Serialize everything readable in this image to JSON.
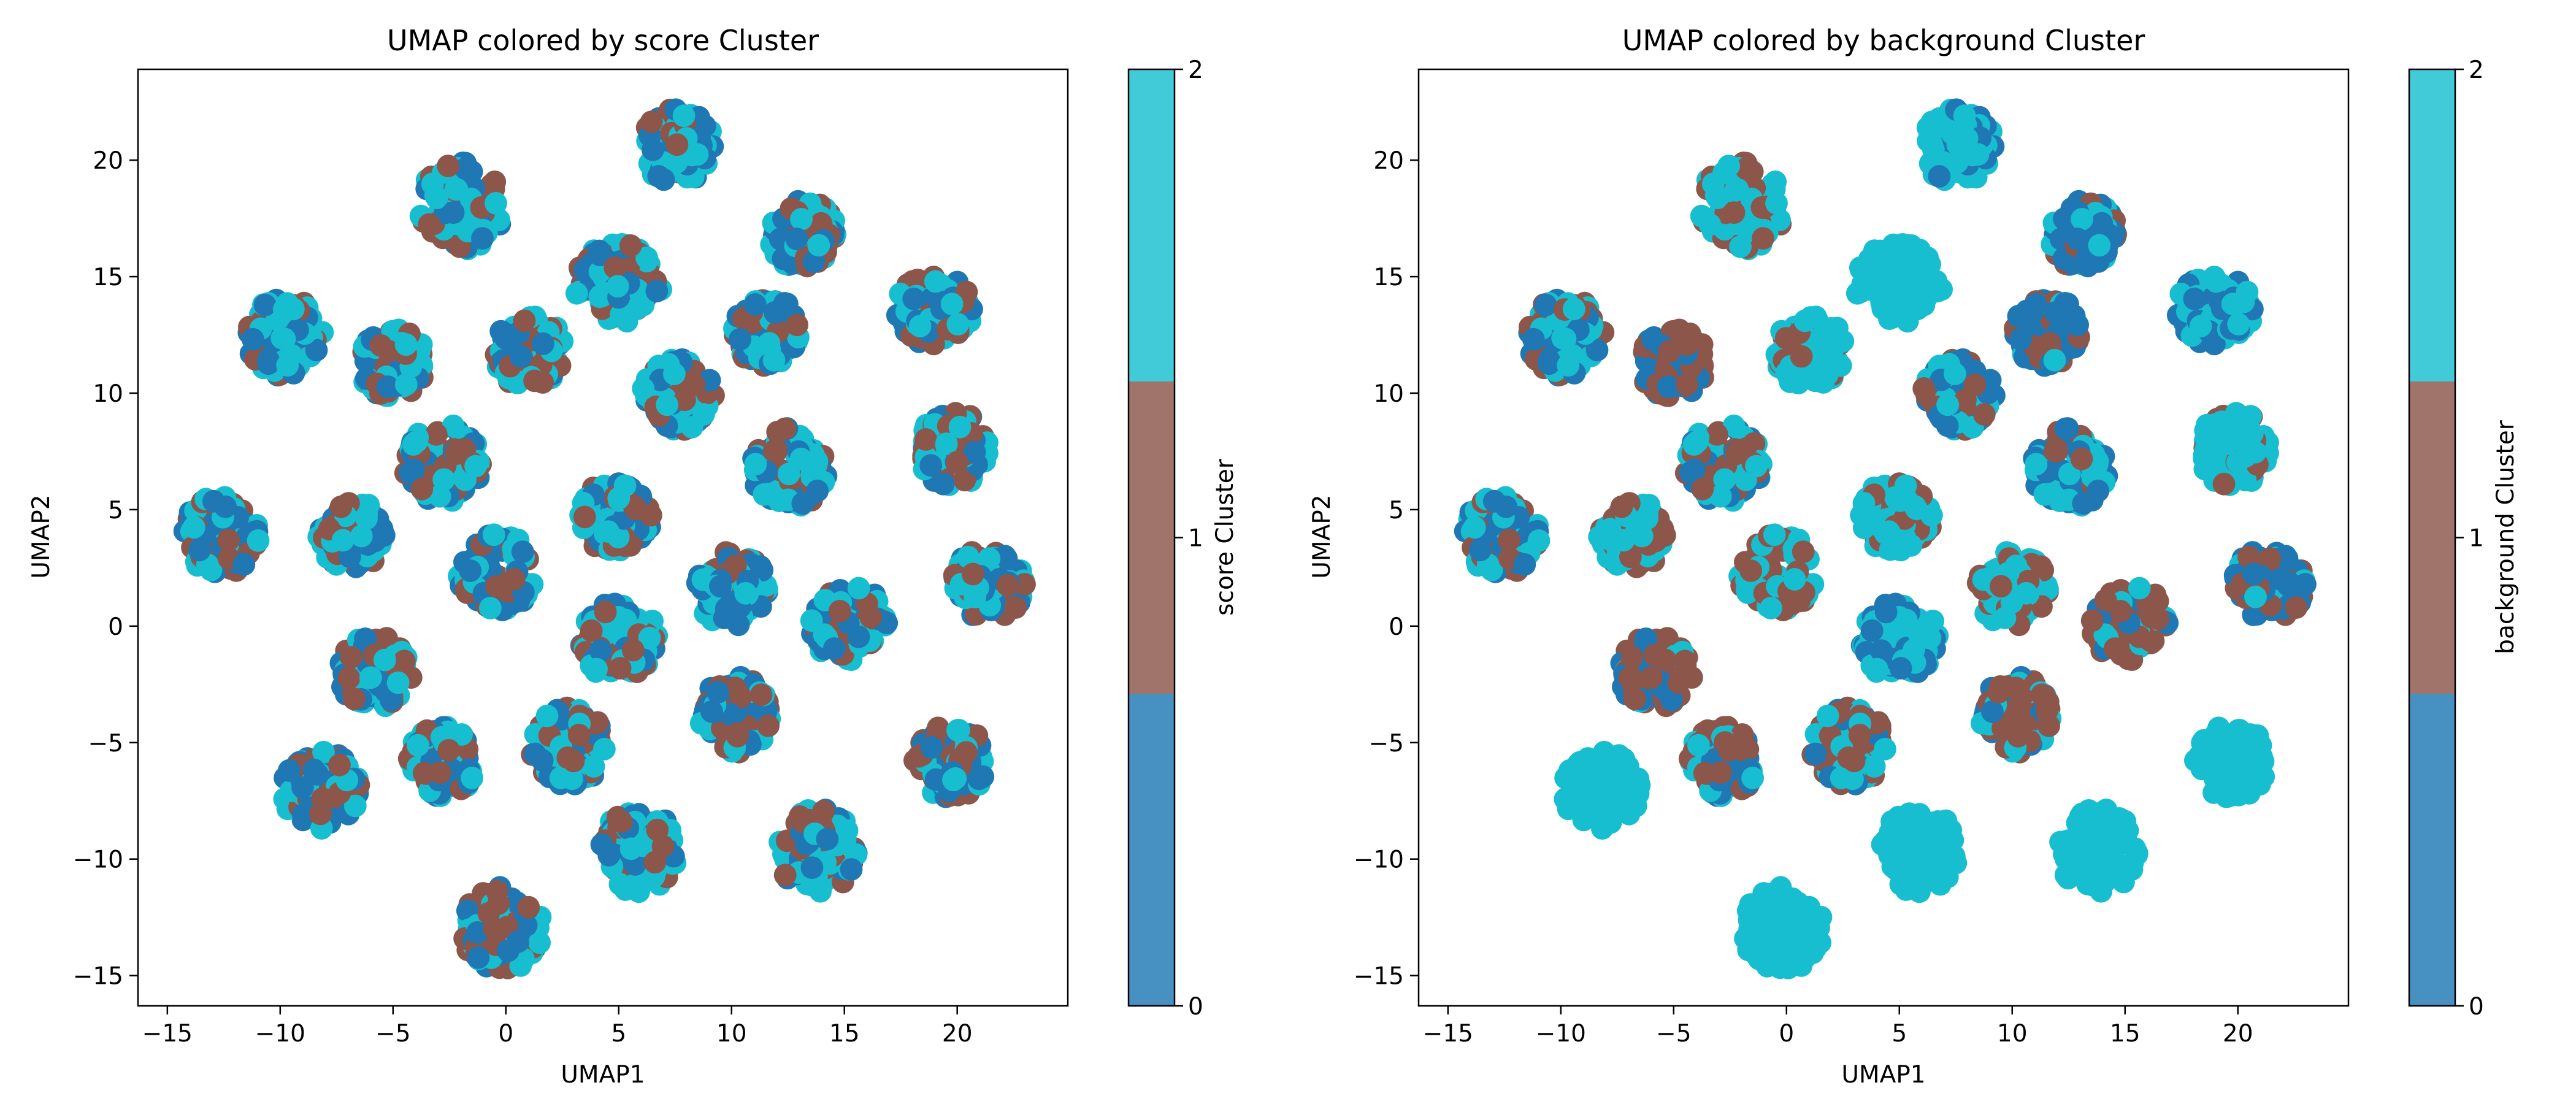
{
  "figure": {
    "background": "#ffffff"
  },
  "colors": {
    "cluster_0": "#1f77b4",
    "cluster_1": "#8c564b",
    "cluster_2": "#17becf"
  },
  "chart_data": [
    {
      "type": "scatter",
      "title": "UMAP colored by score Cluster",
      "xlabel": "UMAP1",
      "ylabel": "UMAP2",
      "xlim": [
        -16.3,
        24.9
      ],
      "ylim": [
        -16.3,
        23.9
      ],
      "xticks": [
        -15,
        -10,
        -5,
        0,
        5,
        10,
        15,
        20
      ],
      "yticks": [
        -15,
        -10,
        -5,
        0,
        5,
        10,
        15,
        20
      ],
      "grid": false,
      "colorbar": {
        "label": "score Cluster",
        "ticks": [
          0,
          1,
          2
        ],
        "colors": [
          "#1f77b4",
          "#8c564b",
          "#17becf"
        ]
      },
      "series": [
        {
          "clusters": [
            {
              "x": 7.6,
              "y": 20.6,
              "r": 1.7,
              "w": [
                0.33,
                0.3,
                0.37
              ]
            },
            {
              "x": -2.0,
              "y": 18.0,
              "r": 2.0,
              "w": [
                0.33,
                0.3,
                0.37
              ]
            },
            {
              "x": 13.2,
              "y": 16.8,
              "r": 1.6,
              "w": [
                0.33,
                0.3,
                0.37
              ]
            },
            {
              "x": 5.0,
              "y": 14.6,
              "r": 2.0,
              "w": [
                0.33,
                0.3,
                0.37
              ]
            },
            {
              "x": 19.0,
              "y": 13.5,
              "r": 1.8,
              "w": [
                0.33,
                0.3,
                0.37
              ]
            },
            {
              "x": -9.8,
              "y": 12.4,
              "r": 1.8,
              "w": [
                0.33,
                0.3,
                0.37
              ]
            },
            {
              "x": 11.6,
              "y": 12.6,
              "r": 1.6,
              "w": [
                0.33,
                0.3,
                0.37
              ]
            },
            {
              "x": -5.0,
              "y": 11.3,
              "r": 1.6,
              "w": [
                0.33,
                0.3,
                0.37
              ]
            },
            {
              "x": 1.0,
              "y": 11.8,
              "r": 1.7,
              "w": [
                0.33,
                0.3,
                0.37
              ]
            },
            {
              "x": 7.6,
              "y": 9.9,
              "r": 1.7,
              "w": [
                0.33,
                0.3,
                0.37
              ]
            },
            {
              "x": 19.8,
              "y": 7.6,
              "r": 1.7,
              "w": [
                0.33,
                0.3,
                0.37
              ]
            },
            {
              "x": -2.8,
              "y": 7.0,
              "r": 1.8,
              "w": [
                0.33,
                0.3,
                0.37
              ]
            },
            {
              "x": 12.6,
              "y": 6.8,
              "r": 1.8,
              "w": [
                0.33,
                0.3,
                0.37
              ]
            },
            {
              "x": 4.9,
              "y": 4.7,
              "r": 1.7,
              "w": [
                0.33,
                0.3,
                0.37
              ]
            },
            {
              "x": -12.6,
              "y": 3.9,
              "r": 1.8,
              "w": [
                0.33,
                0.3,
                0.37
              ]
            },
            {
              "x": -6.8,
              "y": 3.9,
              "r": 1.6,
              "w": [
                0.33,
                0.3,
                0.37
              ]
            },
            {
              "x": -0.4,
              "y": 2.3,
              "r": 1.8,
              "w": [
                0.33,
                0.3,
                0.37
              ]
            },
            {
              "x": 10.0,
              "y": 1.6,
              "r": 1.7,
              "w": [
                0.33,
                0.3,
                0.37
              ]
            },
            {
              "x": 21.4,
              "y": 1.8,
              "r": 1.7,
              "w": [
                0.33,
                0.3,
                0.37
              ]
            },
            {
              "x": 15.2,
              "y": 0.1,
              "r": 1.8,
              "w": [
                0.33,
                0.3,
                0.37
              ]
            },
            {
              "x": 5.0,
              "y": -0.6,
              "r": 1.8,
              "w": [
                0.33,
                0.3,
                0.37
              ]
            },
            {
              "x": -5.8,
              "y": -2.0,
              "r": 1.7,
              "w": [
                0.33,
                0.3,
                0.37
              ]
            },
            {
              "x": 10.2,
              "y": -3.8,
              "r": 1.7,
              "w": [
                0.33,
                0.3,
                0.37
              ]
            },
            {
              "x": 2.8,
              "y": -5.2,
              "r": 1.8,
              "w": [
                0.33,
                0.3,
                0.37
              ]
            },
            {
              "x": -2.8,
              "y": -5.8,
              "r": 1.6,
              "w": [
                0.33,
                0.3,
                0.37
              ]
            },
            {
              "x": 19.7,
              "y": -5.8,
              "r": 1.7,
              "w": [
                0.33,
                0.3,
                0.37
              ]
            },
            {
              "x": -8.2,
              "y": -7.0,
              "r": 1.8,
              "w": [
                0.33,
                0.3,
                0.37
              ]
            },
            {
              "x": 5.8,
              "y": -9.6,
              "r": 1.9,
              "w": [
                0.33,
                0.3,
                0.37
              ]
            },
            {
              "x": 13.8,
              "y": -9.6,
              "r": 1.9,
              "w": [
                0.33,
                0.3,
                0.37
              ]
            },
            {
              "x": -0.2,
              "y": -13.0,
              "r": 1.9,
              "w": [
                0.33,
                0.3,
                0.37
              ]
            }
          ]
        }
      ]
    },
    {
      "type": "scatter",
      "title": "UMAP colored by background Cluster",
      "xlabel": "UMAP1",
      "ylabel": "UMAP2",
      "xlim": [
        -16.3,
        24.9
      ],
      "ylim": [
        -16.3,
        23.9
      ],
      "xticks": [
        -15,
        -10,
        -5,
        0,
        5,
        10,
        15,
        20
      ],
      "yticks": [
        -15,
        -10,
        -5,
        0,
        5,
        10,
        15,
        20
      ],
      "grid": false,
      "colorbar": {
        "label": "background Cluster",
        "ticks": [
          0,
          1,
          2
        ],
        "colors": [
          "#1f77b4",
          "#8c564b",
          "#17becf"
        ]
      },
      "series": [
        {
          "clusters": [
            {
              "x": 7.6,
              "y": 20.6,
              "r": 1.7,
              "w": [
                0.2,
                0.0,
                0.8
              ]
            },
            {
              "x": -2.0,
              "y": 18.0,
              "r": 2.0,
              "w": [
                0.0,
                0.4,
                0.6
              ]
            },
            {
              "x": 13.2,
              "y": 16.8,
              "r": 1.6,
              "w": [
                0.65,
                0.15,
                0.2
              ]
            },
            {
              "x": 5.0,
              "y": 14.6,
              "r": 2.0,
              "w": [
                0.0,
                0.0,
                1.0
              ]
            },
            {
              "x": 19.0,
              "y": 13.5,
              "r": 1.8,
              "w": [
                0.45,
                0.0,
                0.55
              ]
            },
            {
              "x": -9.8,
              "y": 12.4,
              "r": 1.8,
              "w": [
                0.35,
                0.35,
                0.3
              ]
            },
            {
              "x": 11.6,
              "y": 12.6,
              "r": 1.6,
              "w": [
                0.6,
                0.3,
                0.1
              ]
            },
            {
              "x": -5.0,
              "y": 11.3,
              "r": 1.6,
              "w": [
                0.4,
                0.6,
                0.0
              ]
            },
            {
              "x": 1.0,
              "y": 11.8,
              "r": 1.7,
              "w": [
                0.0,
                0.3,
                0.7
              ]
            },
            {
              "x": 7.6,
              "y": 9.9,
              "r": 1.7,
              "w": [
                0.45,
                0.3,
                0.25
              ]
            },
            {
              "x": 19.8,
              "y": 7.6,
              "r": 1.7,
              "w": [
                0.0,
                0.2,
                0.8
              ]
            },
            {
              "x": -2.8,
              "y": 7.0,
              "r": 1.8,
              "w": [
                0.3,
                0.25,
                0.45
              ]
            },
            {
              "x": 12.6,
              "y": 6.8,
              "r": 1.8,
              "w": [
                0.55,
                0.1,
                0.35
              ]
            },
            {
              "x": 4.9,
              "y": 4.7,
              "r": 1.7,
              "w": [
                0.0,
                0.3,
                0.7
              ]
            },
            {
              "x": -12.6,
              "y": 3.9,
              "r": 1.8,
              "w": [
                0.3,
                0.25,
                0.45
              ]
            },
            {
              "x": -6.8,
              "y": 3.9,
              "r": 1.6,
              "w": [
                0.0,
                0.55,
                0.45
              ]
            },
            {
              "x": -0.4,
              "y": 2.3,
              "r": 1.8,
              "w": [
                0.0,
                0.45,
                0.55
              ]
            },
            {
              "x": 10.0,
              "y": 1.6,
              "r": 1.7,
              "w": [
                0.0,
                0.3,
                0.7
              ]
            },
            {
              "x": 21.4,
              "y": 1.8,
              "r": 1.7,
              "w": [
                0.6,
                0.25,
                0.15
              ]
            },
            {
              "x": 15.2,
              "y": 0.1,
              "r": 1.8,
              "w": [
                0.2,
                0.65,
                0.15
              ]
            },
            {
              "x": 5.0,
              "y": -0.6,
              "r": 1.8,
              "w": [
                0.45,
                0.0,
                0.55
              ]
            },
            {
              "x": -5.8,
              "y": -2.0,
              "r": 1.7,
              "w": [
                0.35,
                0.55,
                0.1
              ]
            },
            {
              "x": 10.2,
              "y": -3.8,
              "r": 1.7,
              "w": [
                0.15,
                0.55,
                0.3
              ]
            },
            {
              "x": 2.8,
              "y": -5.2,
              "r": 1.8,
              "w": [
                0.2,
                0.45,
                0.35
              ]
            },
            {
              "x": -2.8,
              "y": -5.8,
              "r": 1.6,
              "w": [
                0.3,
                0.5,
                0.2
              ]
            },
            {
              "x": 19.7,
              "y": -5.8,
              "r": 1.7,
              "w": [
                0.0,
                0.0,
                1.0
              ]
            },
            {
              "x": -8.2,
              "y": -7.0,
              "r": 1.8,
              "w": [
                0.0,
                0.0,
                1.0
              ]
            },
            {
              "x": 5.8,
              "y": -9.6,
              "r": 1.9,
              "w": [
                0.0,
                0.0,
                1.0
              ]
            },
            {
              "x": 13.8,
              "y": -9.6,
              "r": 1.9,
              "w": [
                0.0,
                0.0,
                1.0
              ]
            },
            {
              "x": -0.2,
              "y": -13.0,
              "r": 1.9,
              "w": [
                0.0,
                0.0,
                1.0
              ]
            }
          ]
        }
      ]
    }
  ]
}
